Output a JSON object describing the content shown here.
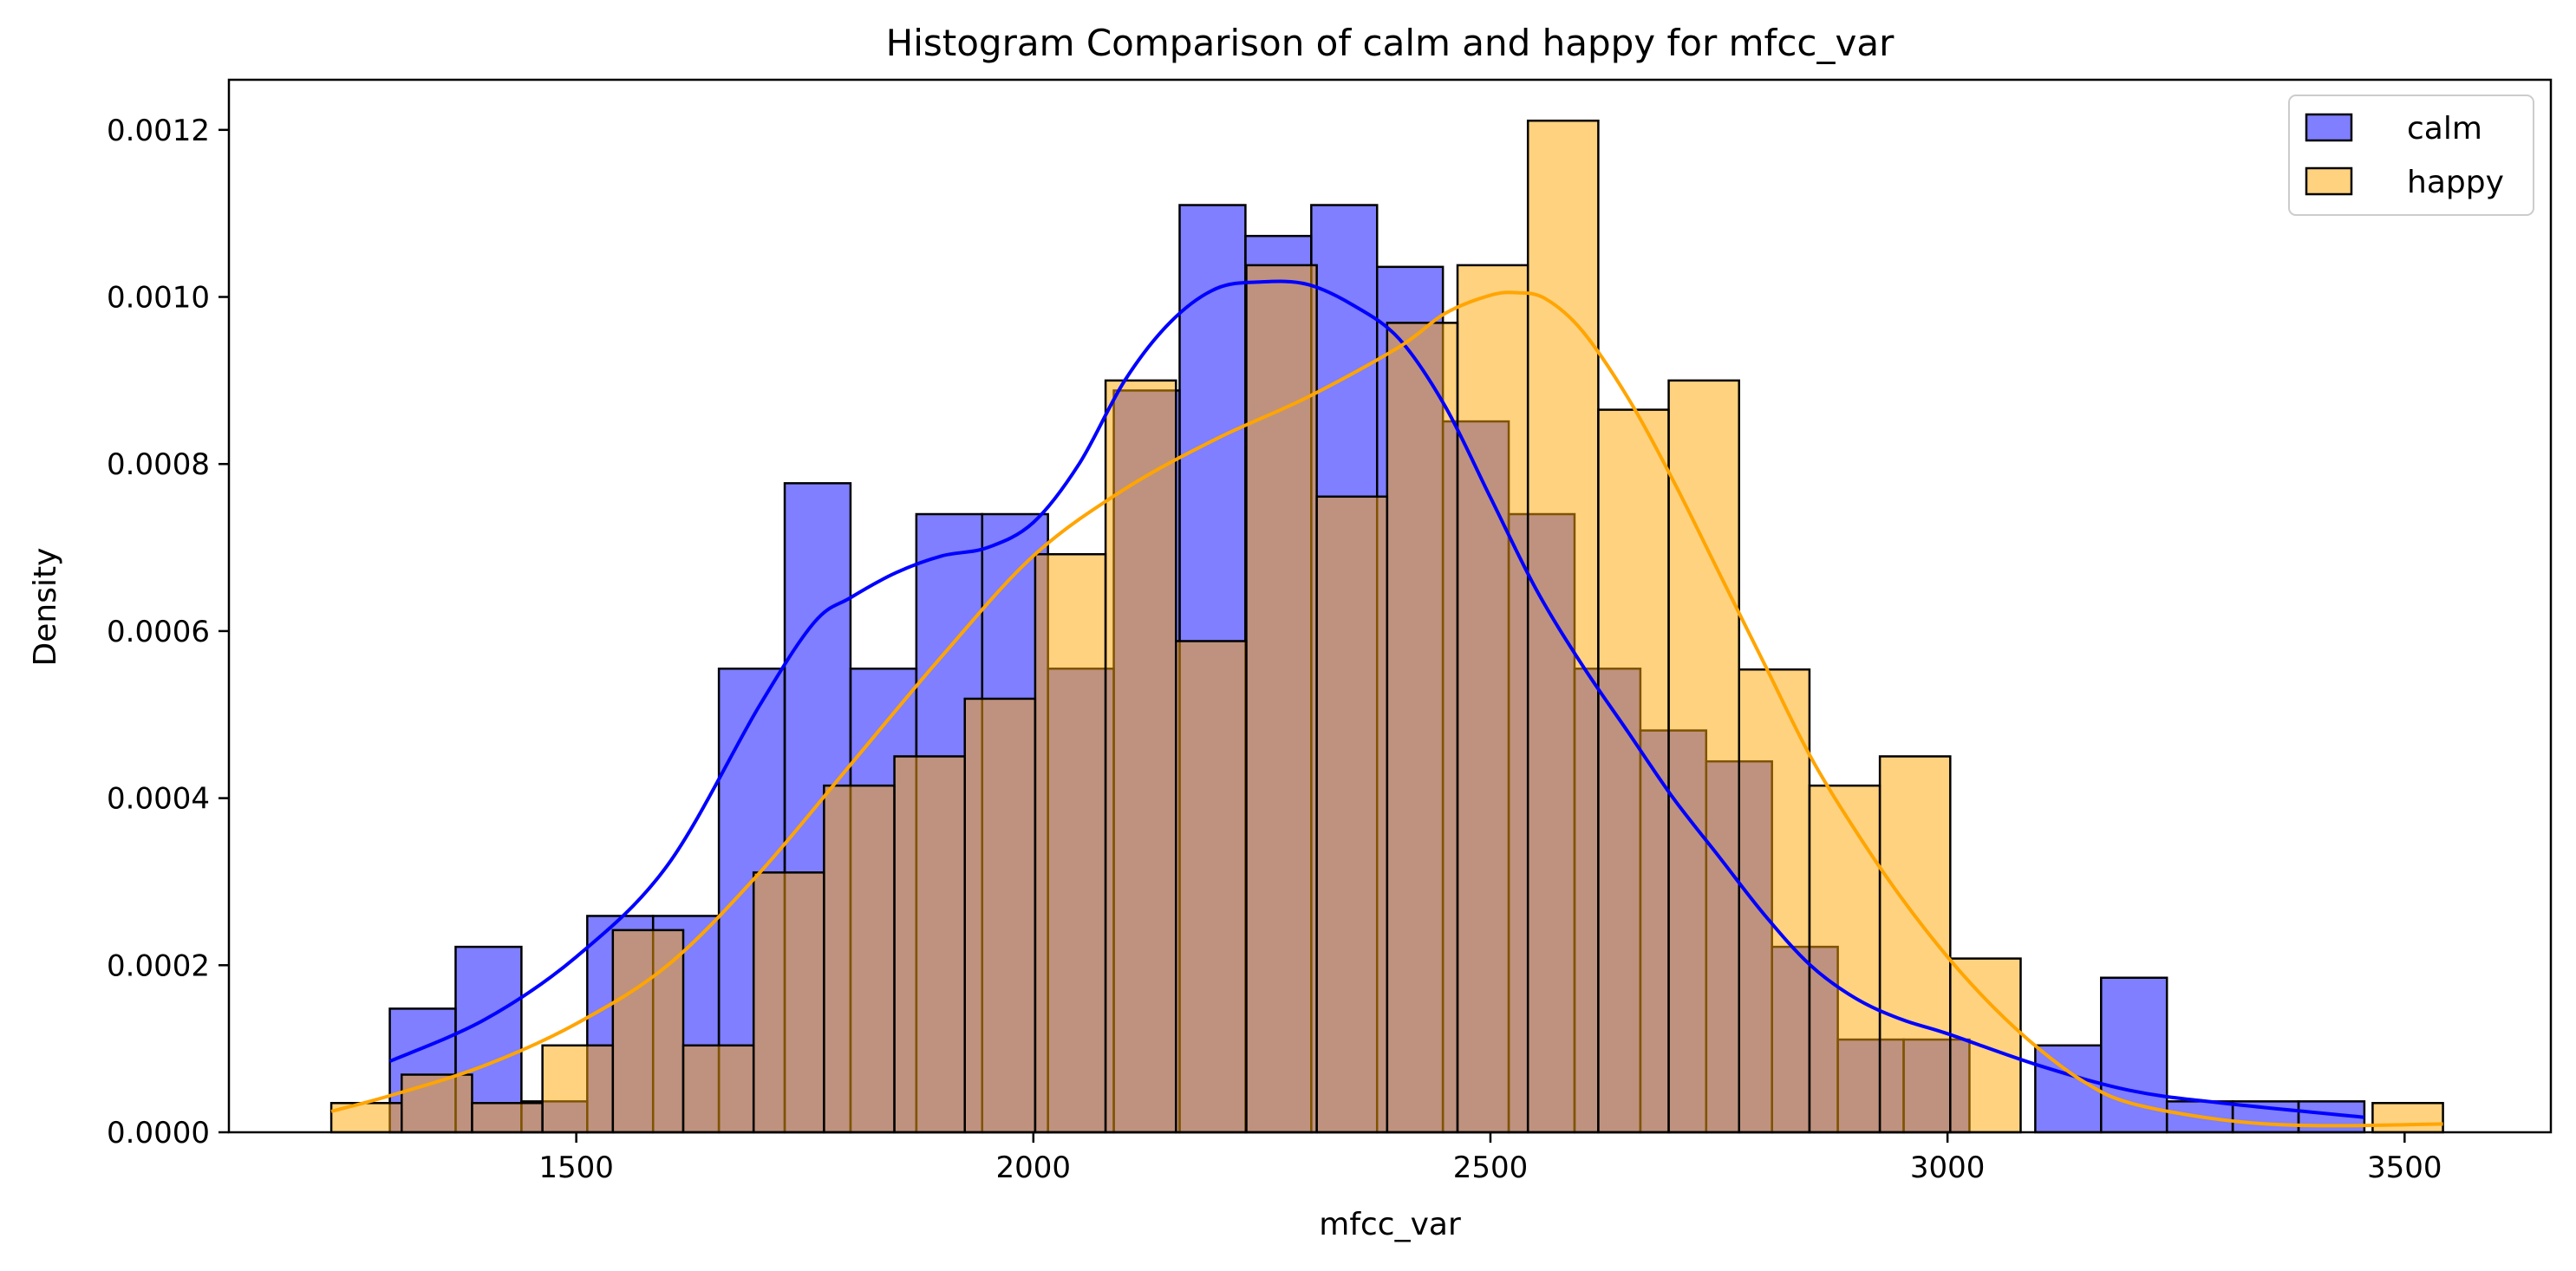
{
  "chart_data": {
    "type": "bar",
    "title": "Histogram Comparison of calm and happy for mfcc_var",
    "xlabel": "mfcc_var",
    "ylabel": "Density",
    "xlim": [
      1120,
      3660
    ],
    "ylim": [
      0,
      0.00126
    ],
    "x_ticks": [
      1500,
      2000,
      2500,
      3000,
      3500
    ],
    "x_tick_labels": [
      "1500",
      "2000",
      "2500",
      "3000",
      "3500"
    ],
    "y_ticks": [
      0,
      0.0002,
      0.0004,
      0.0006,
      0.0008,
      0.001,
      0.0012
    ],
    "y_tick_labels": [
      "0.0000",
      "0.0002",
      "0.0004",
      "0.0006",
      "0.0008",
      "0.0010",
      "0.0012"
    ],
    "grid": false,
    "legend_position": "top-right",
    "series": [
      {
        "name": "calm",
        "fill": "#0000ff",
        "fill_opacity": 0.5,
        "kde_color": "#0000ff",
        "bin_edges": [
          1296,
          1368,
          1440,
          1512,
          1584,
          1656,
          1728,
          1800,
          1872,
          1944,
          2016,
          2088,
          2160,
          2232,
          2304,
          2376,
          2448,
          2520,
          2592,
          2664,
          2736,
          2808,
          2880,
          2952,
          3024,
          3096,
          3168,
          3240,
          3312,
          3384,
          3456
        ],
        "values": [
          0.000148,
          0.000222,
          3.7e-05,
          0.000259,
          0.000259,
          0.000555,
          0.000777,
          0.000555,
          0.00074,
          0.00074,
          0.000555,
          0.000888,
          0.00111,
          0.001073,
          0.00111,
          0.001036,
          0.000851,
          0.00074,
          0.000555,
          0.000481,
          0.000444,
          0.000222,
          0.000111,
          0.000111,
          0.0,
          0.000104,
          0.000185,
          3.7e-05,
          3.7e-05,
          3.7e-05
        ],
        "kde": {
          "x": [
            1296,
            1400,
            1500,
            1600,
            1700,
            1760,
            1800,
            1850,
            1900,
            1950,
            2000,
            2050,
            2100,
            2150,
            2200,
            2250,
            2300,
            2350,
            2400,
            2450,
            2500,
            2550,
            2600,
            2650,
            2700,
            2750,
            2800,
            2850,
            2900,
            2950,
            3000,
            3100,
            3200,
            3300,
            3456
          ],
          "y": [
            8.5e-05,
            0.000135,
            0.00021,
            0.00032,
            0.00051,
            0.00061,
            0.00064,
            0.00067,
            0.00069,
            0.0007,
            0.00073,
            0.0008,
            0.0009,
            0.00097,
            0.00101,
            0.001018,
            0.001015,
            0.00099,
            0.00095,
            0.00087,
            0.00076,
            0.00065,
            0.00056,
            0.00048,
            0.0004,
            0.00033,
            0.00026,
            0.0002,
            0.00016,
            0.000135,
            0.000118,
            8e-05,
            5e-05,
            3.5e-05,
            1.8e-05
          ]
        }
      },
      {
        "name": "happy",
        "fill": "#ffa500",
        "fill_opacity": 0.5,
        "kde_color": "#ffa500",
        "bin_edges": [
          1232,
          1309,
          1386,
          1463,
          1540,
          1617,
          1694,
          1771,
          1848,
          1925,
          2002,
          2079,
          2156,
          2233,
          2310,
          2387,
          2464,
          2541,
          2618,
          2695,
          2772,
          2849,
          2926,
          3003,
          3080,
          3157,
          3234,
          3311,
          3388,
          3465,
          3542
        ],
        "values": [
          3.5e-05,
          6.9e-05,
          3.5e-05,
          0.000104,
          0.000242,
          0.000104,
          0.000311,
          0.000415,
          0.00045,
          0.000519,
          0.000692,
          0.0009,
          0.000588,
          0.001038,
          0.000761,
          0.000969,
          0.001038,
          0.001211,
          0.000865,
          0.0009,
          0.000554,
          0.000415,
          0.00045,
          0.000208,
          0.0,
          0.0,
          0.0,
          0.0,
          0.0,
          3.5e-05
        ],
        "kde": {
          "x": [
            1232,
            1300,
            1400,
            1500,
            1600,
            1700,
            1800,
            1900,
            2000,
            2100,
            2200,
            2300,
            2400,
            2450,
            2500,
            2530,
            2560,
            2600,
            2650,
            2700,
            2750,
            2800,
            2850,
            2900,
            2950,
            3000,
            3050,
            3100,
            3150,
            3200,
            3300,
            3400,
            3542
          ],
          "y": [
            2.5e-05,
            4.5e-05,
            8e-05,
            0.00013,
            0.0002,
            0.00031,
            0.00044,
            0.00057,
            0.00069,
            0.00077,
            0.00083,
            0.00088,
            0.00094,
            0.00098,
            0.001002,
            0.001005,
            0.000998,
            0.00096,
            0.00088,
            0.00078,
            0.00067,
            0.00056,
            0.00045,
            0.00036,
            0.00028,
            0.00021,
            0.00015,
            0.0001,
            6e-05,
            3.5e-05,
            1.5e-05,
            8e-06,
            1e-05
          ]
        }
      }
    ]
  }
}
